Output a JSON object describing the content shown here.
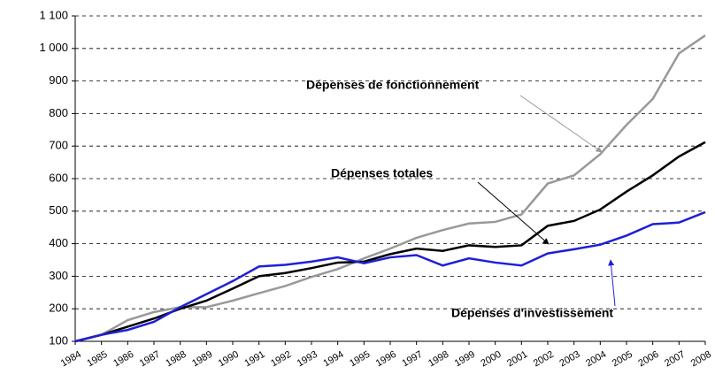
{
  "chart_data": {
    "type": "line",
    "categories": [
      "1984",
      "1985",
      "1986",
      "1987",
      "1988",
      "1989",
      "1990",
      "1991",
      "1992",
      "1993",
      "1994",
      "1995",
      "1996",
      "1997",
      "1998",
      "1999",
      "2000",
      "2001",
      "2002",
      "2003",
      "2004",
      "2005",
      "2006",
      "2007",
      "2008"
    ],
    "series": [
      {
        "name": "Dépenses de fonctionnement",
        "color": "#999999",
        "values": [
          100,
          120,
          165,
          190,
          205,
          205,
          225,
          248,
          270,
          298,
          322,
          355,
          385,
          418,
          442,
          462,
          467,
          490,
          585,
          610,
          675,
          765,
          845,
          985,
          1040
        ]
      },
      {
        "name": "Dépenses totales",
        "color": "#000000",
        "values": [
          100,
          120,
          145,
          170,
          200,
          225,
          262,
          300,
          310,
          325,
          342,
          345,
          368,
          385,
          378,
          395,
          390,
          395,
          455,
          470,
          505,
          560,
          610,
          668,
          712
        ]
      },
      {
        "name": "Dépenses d'investissement",
        "color": "#1f1fd6",
        "values": [
          100,
          120,
          135,
          160,
          205,
          245,
          285,
          330,
          335,
          345,
          358,
          340,
          358,
          365,
          333,
          355,
          342,
          333,
          370,
          383,
          397,
          425,
          460,
          465,
          497
        ]
      }
    ],
    "ylim": [
      100,
      1100
    ],
    "yticks": [
      100,
      200,
      300,
      400,
      500,
      600,
      700,
      800,
      900,
      {
        "value": 1000,
        "label": "1 000"
      },
      {
        "value": 1100,
        "label": "1 100"
      }
    ],
    "grid": true
  }
}
